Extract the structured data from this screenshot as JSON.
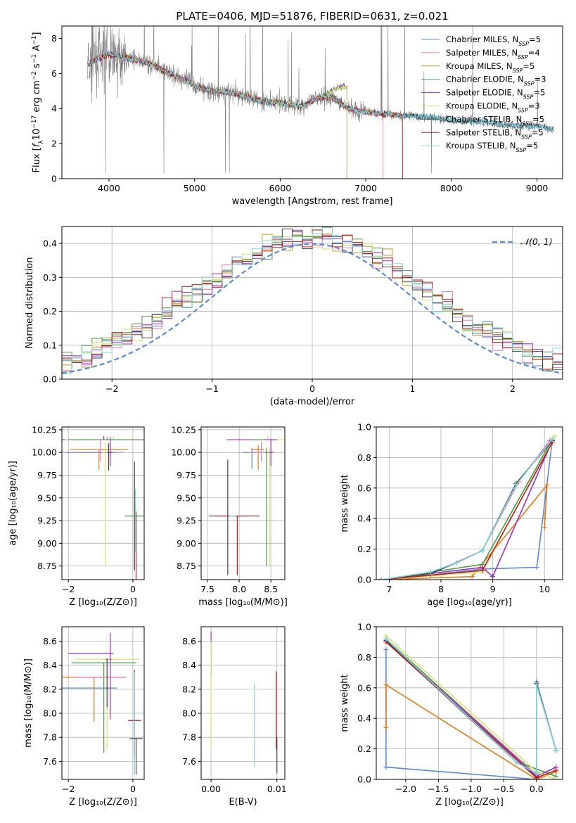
{
  "title": "PLATE=0406, MJD=51876, FIBERID=0631, z=0.021",
  "series_colors": [
    "#5b8bd4",
    "#e07cc0",
    "#c8961e",
    "#4c9a4c",
    "#9b30b8",
    "#d2e36e",
    "#444444",
    "#b22222",
    "#7fd6dd"
  ],
  "series_colors_small": [
    "#5b8bd4",
    "#e07cc0",
    "#e07b1a",
    "#4c9a4c",
    "#9b30b8",
    "#d2e36e",
    "#444444",
    "#b22222",
    "#7fd6dd"
  ],
  "chart_data": [
    {
      "type": "line",
      "xlabel": "wavelength [Angstrom, rest frame]",
      "ylabel_parts": [
        "Flux [",
        "f",
        "λ",
        "10",
        "−17",
        " erg cm",
        "−2",
        " s",
        "−1",
        " A",
        "−1",
        "]"
      ],
      "xlim": [
        3450,
        9300
      ],
      "ylim": [
        0,
        8.7
      ],
      "xticks": [
        "4000",
        "5000",
        "6000",
        "7000",
        "8000",
        "9000"
      ],
      "yticks": [
        "0",
        "2",
        "4",
        "6",
        "8"
      ],
      "legend": [
        {
          "name": "Chabrier MILES, N",
          "sub": "SSP",
          "val": "=5"
        },
        {
          "name": "Salpeter MILES, N",
          "sub": "SSP",
          "val": "=4"
        },
        {
          "name": "Kroupa MILES, N",
          "sub": "SSP",
          "val": "=5"
        },
        {
          "name": "Chabrier ELODIE, N",
          "sub": "SSP",
          "val": "=3"
        },
        {
          "name": "Salpeter ELODIE, N",
          "sub": "SSP",
          "val": "=5"
        },
        {
          "name": "Kroupa ELODIE, N",
          "sub": "SSP",
          "val": "=3"
        },
        {
          "name": "Chabrier STELIB, N",
          "sub": "SSP",
          "val": "=5"
        },
        {
          "name": "Salpeter STELIB, N",
          "sub": "SSP",
          "val": "=5"
        },
        {
          "name": "Kroupa STELIB, N",
          "sub": "SSP",
          "val": "=5"
        }
      ],
      "continuum": [
        [
          3750,
          6.5
        ],
        [
          3900,
          6.9
        ],
        [
          4000,
          7.1
        ],
        [
          4100,
          7.0
        ],
        [
          4300,
          6.8
        ],
        [
          4500,
          6.5
        ],
        [
          4700,
          6.0
        ],
        [
          4900,
          5.6
        ],
        [
          5000,
          5.3
        ],
        [
          5200,
          5.0
        ],
        [
          5400,
          4.9
        ],
        [
          5600,
          4.7
        ],
        [
          5800,
          4.4
        ],
        [
          6000,
          4.3
        ],
        [
          6200,
          4.15
        ],
        [
          6300,
          4.2
        ],
        [
          6450,
          4.6
        ],
        [
          6550,
          4.7
        ],
        [
          6650,
          4.5
        ],
        [
          6800,
          4.0
        ],
        [
          7000,
          3.8
        ],
        [
          7200,
          3.7
        ],
        [
          7400,
          3.6
        ],
        [
          7600,
          3.55
        ],
        [
          7800,
          3.5
        ],
        [
          8000,
          3.35
        ],
        [
          8200,
          3.25
        ],
        [
          8400,
          3.25
        ],
        [
          8600,
          3.05
        ],
        [
          8800,
          3.0
        ],
        [
          9000,
          3.0
        ],
        [
          9200,
          2.8
        ]
      ],
      "elodie_bump": [
        [
          6500,
          4.7
        ],
        [
          6600,
          5.0
        ],
        [
          6700,
          5.2
        ],
        [
          6780,
          5.25
        ]
      ],
      "model_ranges": [
        [
          3750,
          9200
        ],
        [
          3750,
          7200
        ],
        [
          3750,
          7430
        ],
        [
          3750,
          6780
        ],
        [
          3750,
          6780
        ],
        [
          3750,
          6780
        ],
        [
          3750,
          9200
        ],
        [
          3750,
          7430
        ],
        [
          3750,
          9200
        ]
      ]
    },
    {
      "type": "step",
      "xlabel": "(data-model)/error",
      "ylabel": "Normed distribution",
      "xlim": [
        -2.5,
        2.5
      ],
      "ylim": [
        0,
        0.45
      ],
      "xticks": [
        "−2",
        "−1",
        "0",
        "1",
        "2"
      ],
      "yticks": [
        "0.0",
        "0.1",
        "0.2",
        "0.3",
        "0.4"
      ],
      "legend": "𝒩(0, 1)"
    },
    {
      "type": "errorbar",
      "xlabel": "Z [log₁₀(Z/Z⊙)]",
      "ylabel": "age  [log₁₀(age/yr)]",
      "xlim": [
        -2.2,
        0.35
      ],
      "ylim": [
        8.6,
        10.28
      ],
      "xticks": [
        "−2",
        "0"
      ],
      "yticks": [
        "8.75",
        "9.00",
        "9.25",
        "9.50",
        "9.75",
        "10.00",
        "10.25"
      ]
    },
    {
      "type": "errorbar",
      "xlabel": "mass [log₁₀(M/M⊙)]",
      "xlim": [
        7.4,
        8.72
      ],
      "ylim": [
        8.6,
        10.28
      ],
      "xticks": [
        "7.5",
        "8.0",
        "8.5"
      ],
      "yticks": [
        "8.75",
        "9.00",
        "9.25",
        "9.50",
        "9.75",
        "10.00",
        "10.25"
      ]
    },
    {
      "type": "line",
      "xlabel": "age  [log₁₀(age/yr)]",
      "ylabel": "mass weight",
      "xlim": [
        6.75,
        10.35
      ],
      "ylim": [
        0,
        1.0
      ],
      "xticks": [
        "7",
        "8",
        "9",
        "10"
      ],
      "yticks": [
        "0.0",
        "0.2",
        "0.4",
        "0.6",
        "0.8",
        "1.0"
      ],
      "series": [
        {
          "x": [
            6.85,
            7.8,
            8.8,
            9.85,
            10.15
          ],
          "y": [
            0.0,
            0.03,
            0.07,
            0.08,
            0.91
          ]
        },
        {
          "x": [
            6.85,
            7.8,
            8.8,
            9.5,
            10.1
          ],
          "y": [
            0.0,
            0.04,
            0.19,
            0.64,
            0.91
          ]
        },
        {
          "x": [
            6.85,
            8.6,
            10.05,
            10.0
          ],
          "y": [
            0.0,
            0.02,
            0.62,
            0.34
          ]
        },
        {
          "x": [
            6.85,
            8.8,
            10.15
          ],
          "y": [
            0.0,
            0.1,
            0.92
          ]
        },
        {
          "x": [
            6.85,
            7.8,
            8.8,
            9.0,
            10.15
          ],
          "y": [
            0.0,
            0.04,
            0.08,
            0.02,
            0.91
          ]
        },
        {
          "x": [
            6.85,
            8.8,
            10.2
          ],
          "y": [
            0.0,
            0.05,
            0.94
          ]
        },
        {
          "x": [
            6.85,
            7.8,
            8.3,
            8.8,
            9.45,
            10.15
          ],
          "y": [
            0.0,
            0.04,
            0.11,
            0.19,
            0.63,
            0.91
          ]
        },
        {
          "x": [
            6.85,
            8.8,
            10.15
          ],
          "y": [
            0.0,
            0.06,
            0.9
          ]
        },
        {
          "x": [
            6.85,
            7.8,
            8.3,
            8.8,
            9.45,
            10.15
          ],
          "y": [
            0.0,
            0.05,
            0.11,
            0.19,
            0.62,
            0.92
          ]
        }
      ]
    },
    {
      "type": "errorbar",
      "xlabel": "Z [log₁₀(Z/Z⊙)]",
      "ylabel": "mass [log₁₀(M/M⊙)]",
      "xlim": [
        -2.2,
        0.35
      ],
      "ylim": [
        7.45,
        8.72
      ],
      "xticks": [
        "−2",
        "0"
      ],
      "yticks": [
        "7.6",
        "7.8",
        "8.0",
        "8.2",
        "8.4",
        "8.6"
      ]
    },
    {
      "type": "errorbar",
      "xlabel": "E(B-V)",
      "xlim": [
        -0.0015,
        0.0112
      ],
      "ylim": [
        7.45,
        8.72
      ],
      "xticks": [
        "0.00",
        "0.01"
      ],
      "yticks": [
        "7.6",
        "7.8",
        "8.0",
        "8.2",
        "8.4",
        "8.6"
      ]
    },
    {
      "type": "line",
      "xlabel": "Z [log₁₀(Z/Z⊙)]",
      "ylabel": "mass weight",
      "xlim": [
        -2.45,
        0.4
      ],
      "ylim": [
        0,
        1.0
      ],
      "xticks": [
        "−2.0",
        "−1.5",
        "−1.0",
        "−0.5",
        "0.0",
        "0.5"
      ],
      "yticks": [
        "0.0",
        "0.2",
        "0.4",
        "0.6",
        "0.8",
        "1.0"
      ],
      "series": [
        {
          "x": [
            -2.3,
            -2.3,
            0.0,
            0.0,
            0.3
          ],
          "y": [
            0.85,
            0.08,
            0.0,
            0.64,
            0.19
          ]
        },
        {
          "x": [
            -2.3,
            0.0,
            0.0,
            0.3
          ],
          "y": [
            0.92,
            0.03,
            0.62,
            0.19
          ]
        },
        {
          "x": [
            -2.3,
            -2.3,
            0.0,
            0.3
          ],
          "y": [
            0.34,
            0.62,
            0.0,
            0.05
          ]
        },
        {
          "x": [
            -2.3,
            -0.2,
            0.3
          ],
          "y": [
            0.92,
            0.1,
            0.02
          ]
        },
        {
          "x": [
            -2.3,
            0.0,
            0.3
          ],
          "y": [
            0.91,
            0.02,
            0.08
          ]
        },
        {
          "x": [
            -2.3,
            0.0,
            0.3
          ],
          "y": [
            0.94,
            0.05,
            0.0
          ]
        },
        {
          "x": [
            -2.3,
            -0.3,
            0.0,
            0.0,
            0.3
          ],
          "y": [
            0.91,
            0.11,
            0.04,
            0.63,
            0.19
          ]
        },
        {
          "x": [
            -2.3,
            0.0,
            0.3
          ],
          "y": [
            0.9,
            0.01,
            0.06
          ]
        },
        {
          "x": [
            -2.3,
            -0.3,
            0.0,
            0.0,
            0.3
          ],
          "y": [
            0.92,
            0.11,
            0.04,
            0.62,
            0.19
          ]
        }
      ]
    }
  ]
}
